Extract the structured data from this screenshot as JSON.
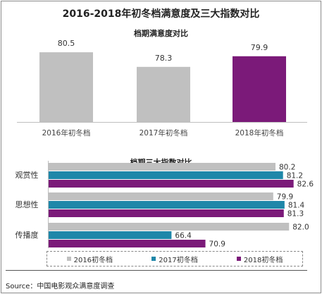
{
  "title": "2016-2018年初冬档满意度及三大指数对比",
  "colors": {
    "s2016": "#c0c0c0",
    "s2017": "#1f87a9",
    "s2018": "#7b1a79"
  },
  "chart_data": [
    {
      "type": "bar",
      "title": "档期满意度对比",
      "categories": [
        "2016年初冬档",
        "2017年初冬档",
        "2018年初冬档"
      ],
      "values": [
        80.5,
        78.3,
        79.9
      ],
      "value_labels": [
        "80.5",
        "78.3",
        "79.9"
      ],
      "colors": [
        "#c0c0c0",
        "#c0c0c0",
        "#7b1a79"
      ],
      "ylim": [
        70,
        82
      ]
    },
    {
      "type": "bar",
      "orientation": "horizontal",
      "title": "档期三大指数对比",
      "categories": [
        "观赏性",
        "思想性",
        "传播度"
      ],
      "series": [
        {
          "name": "2016初冬档",
          "values": [
            80.2,
            79.9,
            82.0
          ],
          "labels": [
            "80.2",
            "79.9",
            "82.0"
          ]
        },
        {
          "name": "2017初冬档",
          "values": [
            81.2,
            81.4,
            66.4
          ],
          "labels": [
            "81.2",
            "81.4",
            "66.4"
          ]
        },
        {
          "name": "2018初冬档",
          "values": [
            82.6,
            81.3,
            70.9
          ],
          "labels": [
            "82.6",
            "81.3",
            "70.9"
          ]
        }
      ],
      "xlim": [
        50,
        84
      ],
      "legend": "bottom"
    }
  ],
  "source": "Source：中国电影观众满意度调查"
}
